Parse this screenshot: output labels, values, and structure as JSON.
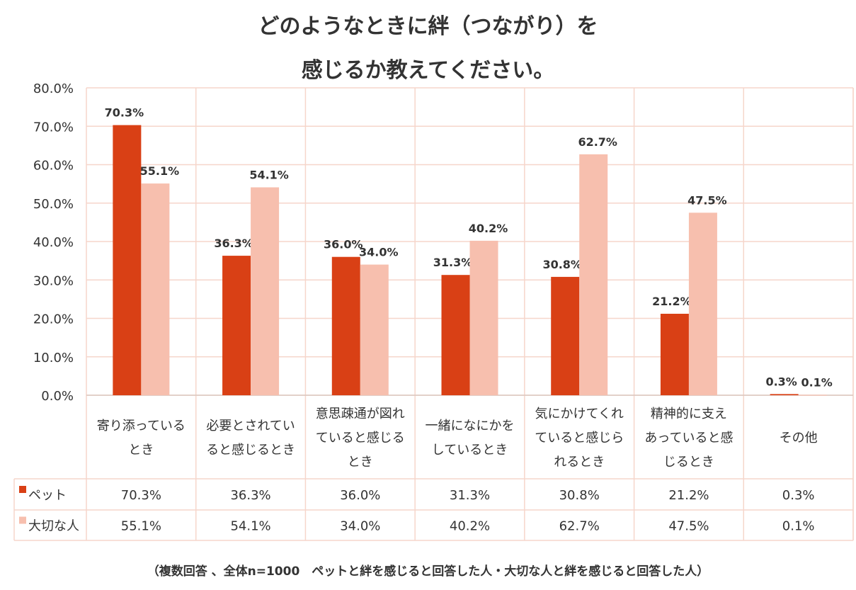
{
  "chart_data": {
    "type": "bar",
    "title_lines": [
      "どのようなときに絆（つながり）を",
      "感じるか教えてください。"
    ],
    "categories": [
      [
        "寄り添っている",
        "とき"
      ],
      [
        "必要とされてい",
        "ると感じるとき"
      ],
      [
        "意思疎通が図れ",
        "ていると感じる",
        "とき"
      ],
      [
        "一緒になにかを",
        "しているとき"
      ],
      [
        "気にかけてくれ",
        "ていると感じら",
        "れるとき"
      ],
      [
        "精神的に支え",
        "あっていると感",
        "じるとき"
      ],
      [
        "その他"
      ]
    ],
    "series": [
      {
        "name": "ペット",
        "color": "#d94015",
        "values": [
          70.3,
          36.3,
          36.0,
          31.3,
          30.8,
          21.2,
          0.3
        ],
        "labels": [
          "70.3%",
          "36.3%",
          "36.0%",
          "31.3%",
          "30.8%",
          "21.2%",
          "0.3%"
        ]
      },
      {
        "name": "大切な人",
        "color": "#f7bfae",
        "values": [
          55.1,
          54.1,
          34.0,
          40.2,
          62.7,
          47.5,
          0.1
        ],
        "labels": [
          "55.1%",
          "54.1%",
          "34.0%",
          "40.2%",
          "62.7%",
          "47.5%",
          "0.1%"
        ]
      }
    ],
    "yticks": [
      "0.0%",
      "10.0%",
      "20.0%",
      "30.0%",
      "40.0%",
      "50.0%",
      "60.0%",
      "70.0%",
      "80.0%"
    ],
    "ylim": [
      0,
      80
    ],
    "grid": true,
    "gridline_color": "#f6d6cb",
    "footnote": "（複数回答 、全体n=1000　ペットと絆を感じると回答した人・大切な人と絆を感じると回答した人）"
  }
}
